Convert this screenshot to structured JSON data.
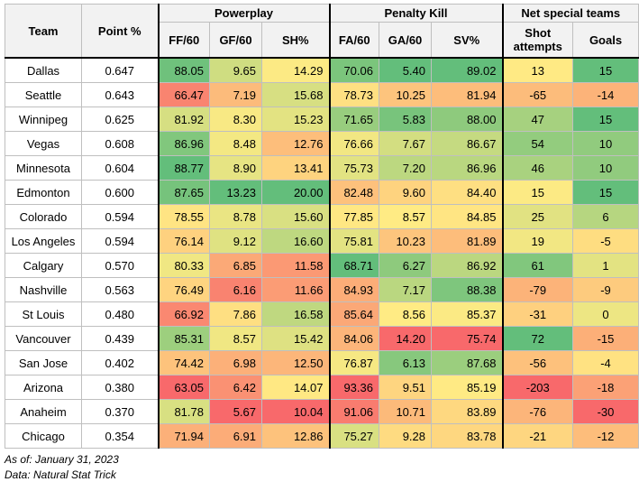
{
  "table": {
    "groups": [
      "Powerplay",
      "Penalty Kill",
      "Net special teams"
    ],
    "columns": [
      "Team",
      "Point %",
      "FF/60",
      "GF/60",
      "SH%",
      "FA/60",
      "GA/60",
      "SV%",
      "Shot attempts",
      "Goals"
    ],
    "rows": [
      [
        "Dallas",
        "0.647",
        "88.05",
        "9.65",
        "14.29",
        "70.06",
        "5.40",
        "89.02",
        "13",
        "15"
      ],
      [
        "Seattle",
        "0.643",
        "66.47",
        "7.19",
        "15.68",
        "78.73",
        "10.25",
        "81.94",
        "-65",
        "-14"
      ],
      [
        "Winnipeg",
        "0.625",
        "81.92",
        "8.30",
        "15.23",
        "71.65",
        "5.83",
        "88.00",
        "47",
        "15"
      ],
      [
        "Vegas",
        "0.608",
        "86.96",
        "8.48",
        "12.76",
        "76.66",
        "7.67",
        "86.67",
        "54",
        "10"
      ],
      [
        "Minnesota",
        "0.604",
        "88.77",
        "8.90",
        "13.41",
        "75.73",
        "7.20",
        "86.96",
        "46",
        "10"
      ],
      [
        "Edmonton",
        "0.600",
        "87.65",
        "13.23",
        "20.00",
        "82.48",
        "9.60",
        "84.40",
        "15",
        "15"
      ],
      [
        "Colorado",
        "0.594",
        "78.55",
        "8.78",
        "15.60",
        "77.85",
        "8.57",
        "84.85",
        "25",
        "6"
      ],
      [
        "Los Angeles",
        "0.594",
        "76.14",
        "9.12",
        "16.60",
        "75.81",
        "10.23",
        "81.89",
        "19",
        "-5"
      ],
      [
        "Calgary",
        "0.570",
        "80.33",
        "6.85",
        "11.58",
        "68.71",
        "6.27",
        "86.92",
        "61",
        "1"
      ],
      [
        "Nashville",
        "0.563",
        "76.49",
        "6.16",
        "11.66",
        "84.93",
        "7.17",
        "88.38",
        "-79",
        "-9"
      ],
      [
        "St Louis",
        "0.480",
        "66.92",
        "7.86",
        "16.58",
        "85.64",
        "8.56",
        "85.37",
        "-31",
        "0"
      ],
      [
        "Vancouver",
        "0.439",
        "85.31",
        "8.57",
        "15.42",
        "84.06",
        "14.20",
        "75.74",
        "72",
        "-15"
      ],
      [
        "San Jose",
        "0.402",
        "74.42",
        "6.98",
        "12.50",
        "76.87",
        "6.13",
        "87.68",
        "-56",
        "-4"
      ],
      [
        "Arizona",
        "0.380",
        "63.05",
        "6.42",
        "14.07",
        "93.36",
        "9.51",
        "85.19",
        "-203",
        "-18"
      ],
      [
        "Anaheim",
        "0.370",
        "81.78",
        "5.67",
        "10.04",
        "91.06",
        "10.71",
        "83.89",
        "-76",
        "-30"
      ],
      [
        "Chicago",
        "0.354",
        "71.94",
        "6.91",
        "12.86",
        "75.27",
        "9.28",
        "83.78",
        "-21",
        "-12"
      ]
    ]
  },
  "notes": [
    "As of: January 31, 2023",
    "Data: Natural Stat Trick"
  ]
}
